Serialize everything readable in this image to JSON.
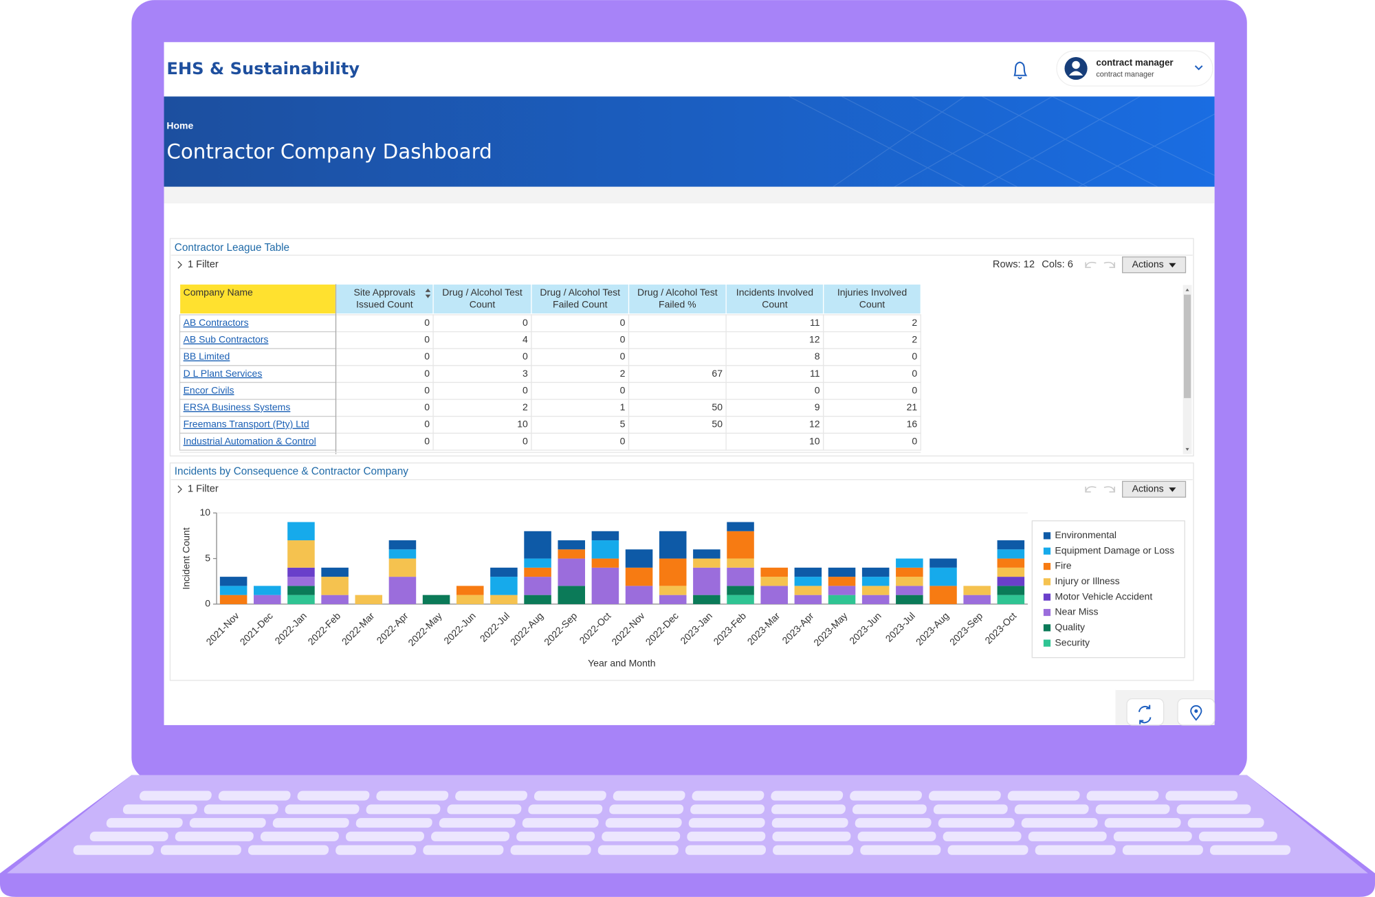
{
  "header": {
    "app_title": "EHS & Sustainability",
    "user_name": "contract manager",
    "user_role": "contract manager"
  },
  "banner": {
    "breadcrumb": "Home",
    "title": "Contractor Company Dashboard"
  },
  "league_table": {
    "title": "Contractor League Table",
    "filter": "1 Filter",
    "rows_info": "Rows: 12",
    "cols_info": "Cols: 6",
    "actions": "Actions",
    "columns": [
      [
        "Company Name"
      ],
      [
        "Site Approvals",
        "Issued Count"
      ],
      [
        "Drug / Alcohol Test",
        "Count"
      ],
      [
        "Drug / Alcohol Test",
        "Failed Count"
      ],
      [
        "Drug / Alcohol Test",
        "Failed %"
      ],
      [
        "Incidents Involved",
        "Count"
      ],
      [
        "Injuries Involved",
        "Count"
      ]
    ],
    "rows": [
      [
        "AB Contractors",
        0,
        0,
        0,
        null,
        11,
        2
      ],
      [
        "AB Sub Contractors",
        0,
        4,
        0,
        null,
        12,
        2
      ],
      [
        "BB Limited",
        0,
        0,
        0,
        null,
        8,
        0
      ],
      [
        "D L Plant Services",
        0,
        3,
        2,
        67,
        11,
        0
      ],
      [
        "Encor Civils",
        0,
        0,
        0,
        null,
        0,
        0
      ],
      [
        "ERSA Business Systems",
        0,
        2,
        1,
        50,
        9,
        21
      ],
      [
        "Freemans Transport (Pty) Ltd",
        0,
        10,
        5,
        50,
        12,
        16
      ],
      [
        "Industrial Automation & Control",
        0,
        0,
        0,
        null,
        10,
        0
      ]
    ]
  },
  "incidents_panel": {
    "title": "Incidents by Consequence & Contractor Company",
    "filter": "1 Filter",
    "actions": "Actions"
  },
  "chart_data": {
    "type": "stacked_bar",
    "y_label": "Incident Count",
    "x_label": "Year and Month",
    "ylim": [
      0,
      10
    ],
    "yticks": [
      0,
      5,
      10
    ],
    "legend": "right",
    "categories": [
      "2021-Nov",
      "2021-Dec",
      "2022-Jan",
      "2022-Feb",
      "2022-Mar",
      "2022-Apr",
      "2022-May",
      "2022-Jun",
      "2022-Jul",
      "2022-Aug",
      "2022-Sep",
      "2022-Oct",
      "2022-Nov",
      "2022-Dec",
      "2023-Jan",
      "2023-Feb",
      "2023-Mar",
      "2023-Apr",
      "2023-May",
      "2023-Jun",
      "2023-Jul",
      "2023-Aug",
      "2023-Sep",
      "2023-Oct"
    ],
    "series": [
      {
        "name": "Environmental",
        "color": "#0e5aa7",
        "values": [
          1,
          0,
          0,
          1,
          0,
          1,
          0,
          0,
          1,
          3,
          1,
          1,
          2,
          3,
          1,
          1,
          0,
          1,
          1,
          1,
          0,
          1,
          0,
          1
        ]
      },
      {
        "name": "Equipment Damage or Loss",
        "color": "#16aaeb",
        "values": [
          1,
          1,
          2,
          0,
          0,
          1,
          0,
          0,
          2,
          1,
          0,
          2,
          0,
          0,
          0,
          0,
          0,
          1,
          0,
          1,
          1,
          2,
          0,
          1
        ]
      },
      {
        "name": "Fire",
        "color": "#f77b12",
        "values": [
          1,
          0,
          0,
          0,
          0,
          0,
          0,
          1,
          0,
          1,
          1,
          1,
          2,
          3,
          0,
          3,
          1,
          0,
          1,
          0,
          1,
          2,
          0,
          1
        ]
      },
      {
        "name": "Injury or Illness",
        "color": "#f5c24f",
        "values": [
          0,
          0,
          3,
          2,
          1,
          2,
          0,
          1,
          1,
          0,
          0,
          0,
          0,
          1,
          1,
          1,
          1,
          1,
          0,
          1,
          1,
          0,
          1,
          1
        ]
      },
      {
        "name": "Motor Vehicle Accident",
        "color": "#6a3fca",
        "values": [
          0,
          0,
          1,
          0,
          0,
          0,
          0,
          0,
          0,
          0,
          0,
          0,
          0,
          0,
          0,
          0,
          0,
          0,
          0,
          0,
          0,
          0,
          0,
          1
        ]
      },
      {
        "name": "Near Miss",
        "color": "#9b6ddc",
        "values": [
          0,
          1,
          1,
          1,
          0,
          3,
          0,
          0,
          0,
          2,
          3,
          4,
          2,
          1,
          3,
          2,
          2,
          1,
          1,
          1,
          1,
          0,
          1,
          0
        ]
      },
      {
        "name": "Quality",
        "color": "#0b7a58",
        "values": [
          0,
          0,
          1,
          0,
          0,
          0,
          1,
          0,
          0,
          1,
          2,
          0,
          0,
          0,
          1,
          1,
          0,
          0,
          0,
          0,
          1,
          0,
          0,
          1
        ]
      },
      {
        "name": "Security",
        "color": "#2fc493",
        "values": [
          0,
          0,
          1,
          0,
          0,
          0,
          0,
          0,
          0,
          0,
          0,
          0,
          0,
          0,
          0,
          1,
          0,
          0,
          1,
          0,
          0,
          0,
          0,
          1
        ]
      }
    ]
  }
}
